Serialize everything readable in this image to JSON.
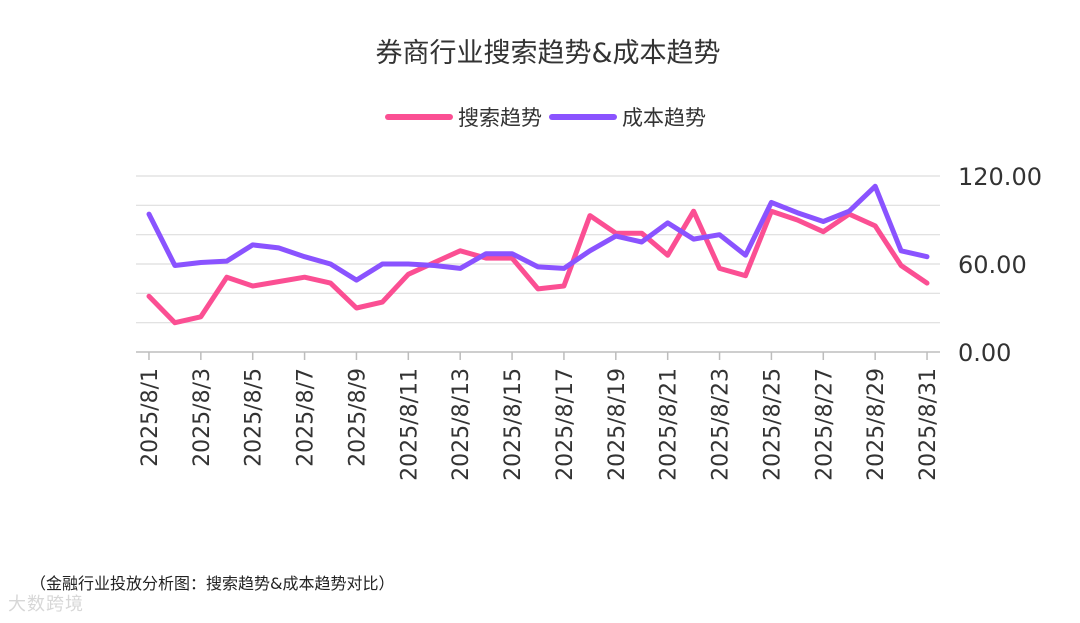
{
  "caption": "（金融行业投放分析图：搜索趋势&成本趋势对比）",
  "watermark": "大数跨境",
  "chart_data": {
    "type": "line",
    "title": "券商行业搜索趋势&成本趋势",
    "legend_position": "top-center",
    "grid": true,
    "ylim": [
      0,
      120
    ],
    "yticks": [
      "0.00",
      "60.00",
      "120.00"
    ],
    "x": [
      "2025/8/1",
      "2025/8/2",
      "2025/8/3",
      "2025/8/4",
      "2025/8/5",
      "2025/8/6",
      "2025/8/7",
      "2025/8/8",
      "2025/8/9",
      "2025/8/10",
      "2025/8/11",
      "2025/8/12",
      "2025/8/13",
      "2025/8/14",
      "2025/8/15",
      "2025/8/16",
      "2025/8/17",
      "2025/8/18",
      "2025/8/19",
      "2025/8/20",
      "2025/8/21",
      "2025/8/22",
      "2025/8/23",
      "2025/8/24",
      "2025/8/25",
      "2025/8/26",
      "2025/8/27",
      "2025/8/28",
      "2025/8/29",
      "2025/8/30",
      "2025/8/31"
    ],
    "x_tick_labels": [
      "2025/8/1",
      "2025/8/3",
      "2025/8/5",
      "2025/8/7",
      "2025/8/9",
      "2025/8/11",
      "2025/8/13",
      "2025/8/15",
      "2025/8/17",
      "2025/8/19",
      "2025/8/21",
      "2025/8/23",
      "2025/8/25",
      "2025/8/27",
      "2025/8/29",
      "2025/8/31"
    ],
    "series": [
      {
        "name": "搜索趋势",
        "color": "#fb4f93",
        "values": [
          38,
          20,
          24,
          51,
          45,
          48,
          51,
          47,
          30,
          34,
          53,
          61,
          69,
          64,
          64,
          43,
          45,
          93,
          81,
          81,
          66,
          96,
          57,
          52,
          96,
          90,
          82,
          94,
          86,
          59,
          47
        ]
      },
      {
        "name": "成本趋势",
        "color": "#8a53ff",
        "values": [
          94,
          59,
          61,
          62,
          73,
          71,
          65,
          60,
          49,
          60,
          60,
          59,
          57,
          67,
          67,
          58,
          57,
          69,
          79,
          75,
          88,
          77,
          80,
          66,
          102,
          95,
          89,
          96,
          113,
          69,
          65
        ]
      }
    ]
  }
}
